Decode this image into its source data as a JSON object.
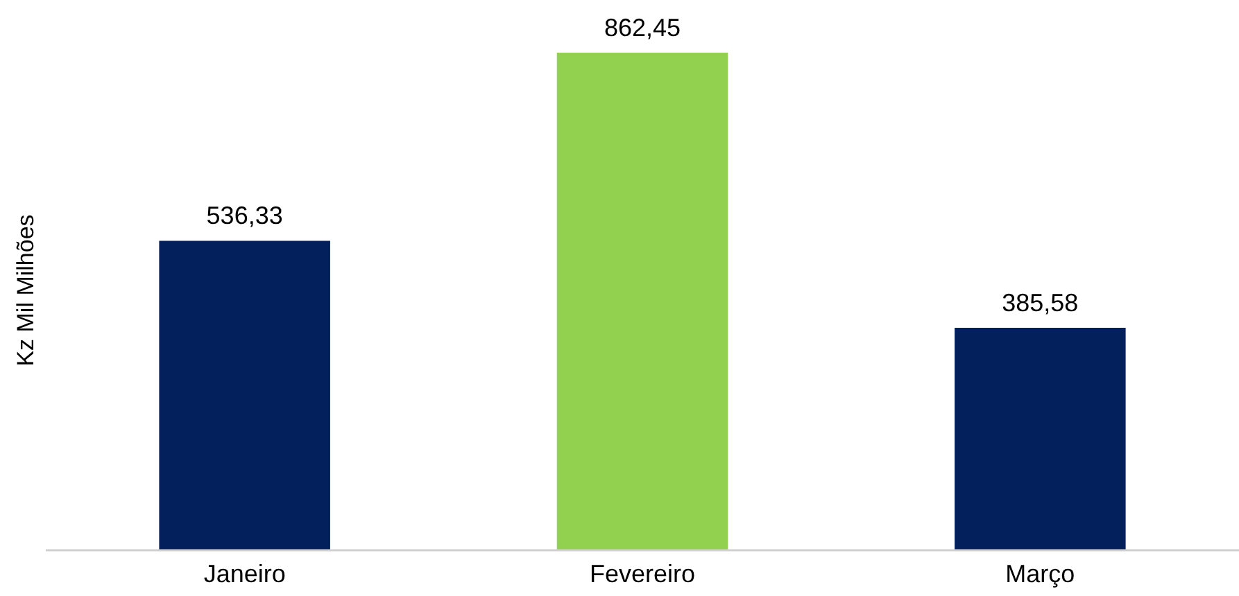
{
  "chart_data": {
    "type": "bar",
    "ylabel": "Kz Mil Milhões",
    "categories": [
      "Janeiro",
      "Fevereiro",
      "Março"
    ],
    "values": [
      536.33,
      862.45,
      385.58
    ],
    "colors": [
      "#03205c",
      "#92d050",
      "#03205c"
    ],
    "value_labels": [
      "536,33",
      "862,45",
      "385,58"
    ],
    "tick_labels": "x"
  }
}
